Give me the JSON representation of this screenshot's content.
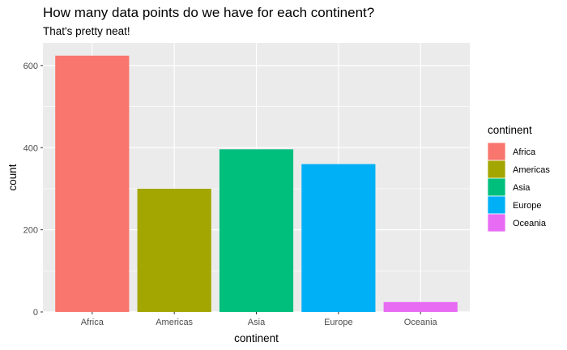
{
  "chart_data": {
    "type": "bar",
    "title": "How many data points do we have for each continent?",
    "subtitle": "That's pretty neat!",
    "xlabel": "continent",
    "ylabel": "count",
    "categories": [
      "Africa",
      "Americas",
      "Asia",
      "Europe",
      "Oceania"
    ],
    "values": [
      624,
      300,
      396,
      360,
      24
    ],
    "colors": [
      "#F8766D",
      "#A3A500",
      "#00BF7D",
      "#00B0F6",
      "#E76BF3"
    ],
    "ylim": [
      0,
      655
    ],
    "yticks": [
      0,
      200,
      400,
      600
    ],
    "grid": true,
    "panel_background": "#EBEBEB",
    "legend": {
      "title": "continent",
      "placement": "right",
      "entries": [
        "Africa",
        "Americas",
        "Asia",
        "Europe",
        "Oceania"
      ]
    }
  }
}
